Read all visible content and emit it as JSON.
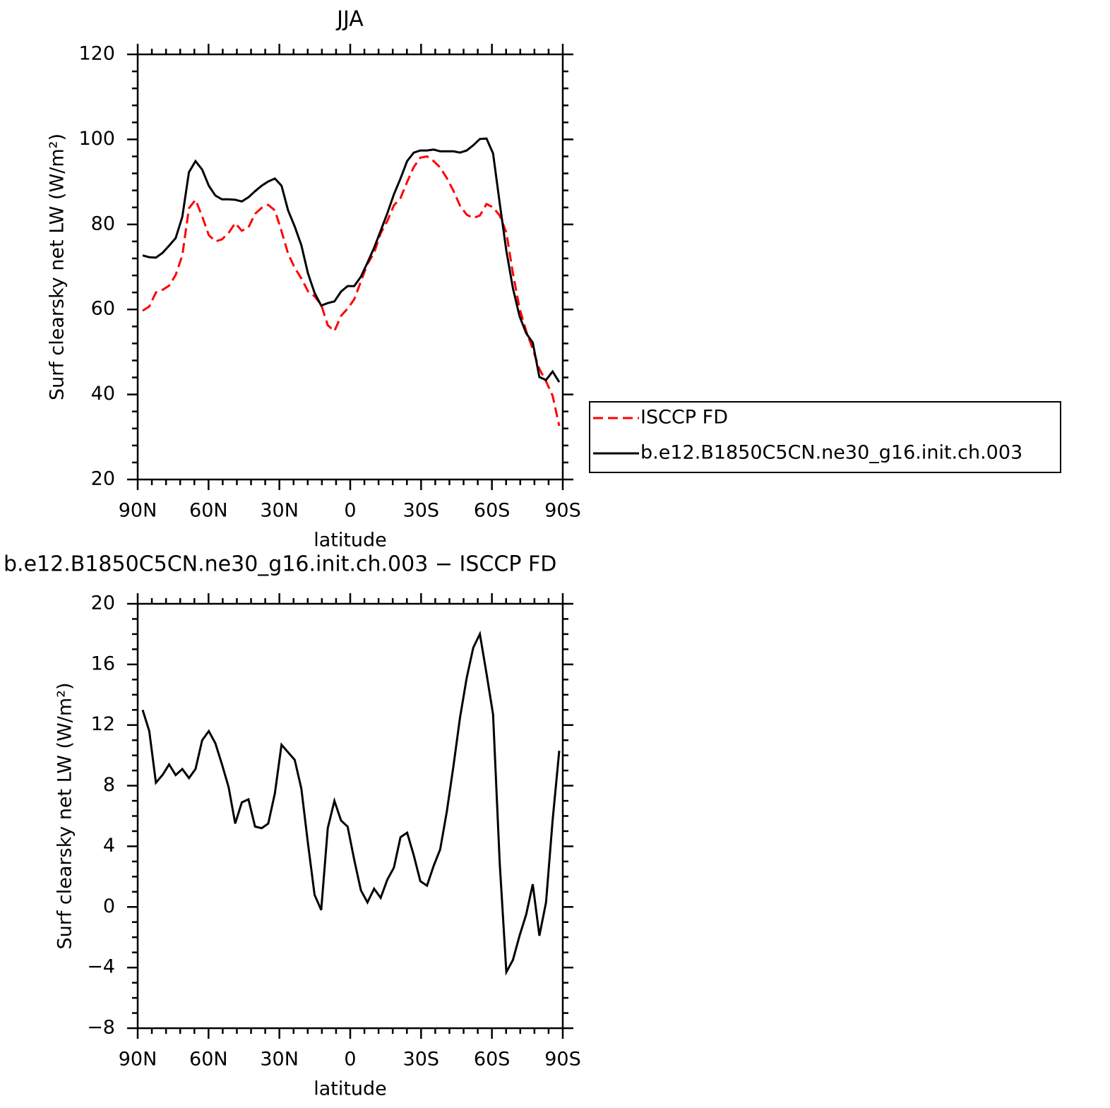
{
  "chart_data": [
    {
      "type": "line",
      "title": "JJA",
      "xlabel": "latitude",
      "ylabel": "Surf clearsky net LW (W/m²)",
      "xlim": [
        90,
        -90
      ],
      "xticks": [
        {
          "value": 90,
          "label": "90N"
        },
        {
          "value": 60,
          "label": "60N"
        },
        {
          "value": 30,
          "label": "30N"
        },
        0,
        {
          "value": -30,
          "label": "30S"
        },
        {
          "value": -60,
          "label": "60S"
        },
        {
          "value": -90,
          "label": "90S"
        }
      ],
      "ylim": [
        20,
        120
      ],
      "yticks": [
        20,
        40,
        60,
        80,
        100,
        120
      ],
      "legend": "outside right",
      "x": [
        87.9,
        85.1,
        82.3,
        79.5,
        76.7,
        73.9,
        71.1,
        68.3,
        65.5,
        62.7,
        59.9,
        57.1,
        54.3,
        51.5,
        48.7,
        45.9,
        43.1,
        40.3,
        37.5,
        34.7,
        31.9,
        29.1,
        26.3,
        23.5,
        20.7,
        17.9,
        15.1,
        12.3,
        9.5,
        6.7,
        3.9,
        1.1,
        -1.7,
        -4.5,
        -7.3,
        -10.1,
        -12.9,
        -15.7,
        -18.5,
        -21.3,
        -24.1,
        -26.9,
        -29.7,
        -32.5,
        -35.3,
        -38.1,
        -40.9,
        -43.7,
        -46.5,
        -49.3,
        -52.1,
        -54.9,
        -57.7,
        -60.5,
        -63.3,
        -66.1,
        -68.9,
        -71.7,
        -74.5,
        -77.3,
        -80.1,
        -82.9,
        -85.7,
        -88.5
      ],
      "series": [
        {
          "name": "ISCCP FD",
          "color": "#ff0000",
          "linestyle": "dashed",
          "values": [
            59.7,
            60.7,
            64.0,
            64.6,
            65.6,
            68.1,
            72.7,
            83.8,
            85.8,
            81.9,
            77.5,
            76.0,
            76.5,
            78.0,
            80.3,
            78.5,
            79.3,
            82.5,
            83.9,
            84.6,
            83.3,
            78.4,
            73.1,
            69.8,
            67.3,
            64.3,
            63.1,
            61.1,
            56.3,
            54.9,
            58.5,
            60.2,
            62.4,
            66.6,
            70.7,
            73.3,
            77.9,
            80.8,
            84.5,
            86.2,
            90.0,
            93.5,
            95.7,
            96.0,
            94.9,
            93.4,
            90.9,
            87.9,
            84.4,
            82.3,
            81.5,
            82.1,
            84.8,
            84.0,
            82.1,
            78.1,
            68.5,
            60.3,
            54.9,
            50.7,
            46.0,
            43.1,
            39.7,
            32.6
          ]
        },
        {
          "name": "b.e12.B1850C5CN.ne30_g16.init.ch.003",
          "color": "#000000",
          "linestyle": "solid",
          "values": [
            72.7,
            72.3,
            72.2,
            73.3,
            75.0,
            76.8,
            81.8,
            92.3,
            94.9,
            92.9,
            89.1,
            86.8,
            85.9,
            85.9,
            85.8,
            85.4,
            86.4,
            87.8,
            89.1,
            90.1,
            90.8,
            89.1,
            83.3,
            79.5,
            75.1,
            68.5,
            63.9,
            60.9,
            61.5,
            61.9,
            64.2,
            65.5,
            65.5,
            67.7,
            71.0,
            74.5,
            78.5,
            82.6,
            87.1,
            90.8,
            94.9,
            96.9,
            97.4,
            97.4,
            97.6,
            97.2,
            97.2,
            97.2,
            96.9,
            97.4,
            98.6,
            100.1,
            100.2,
            96.7,
            85.0,
            73.8,
            65.0,
            58.4,
            54.4,
            52.2,
            44.1,
            43.4,
            45.4,
            42.9
          ]
        }
      ]
    },
    {
      "type": "line",
      "title": "b.e12.B1850C5CN.ne30_g16.init.ch.003 − ISCCP FD",
      "xlabel": "latitude",
      "ylabel": "Surf clearsky net LW (W/m²)",
      "xlim": [
        90,
        -90
      ],
      "xticks": [
        {
          "value": 90,
          "label": "90N"
        },
        {
          "value": 60,
          "label": "60N"
        },
        {
          "value": 30,
          "label": "30N"
        },
        0,
        {
          "value": -30,
          "label": "30S"
        },
        {
          "value": -60,
          "label": "60S"
        },
        {
          "value": -90,
          "label": "90S"
        }
      ],
      "ylim": [
        -8,
        20
      ],
      "yticks": [
        {
          "value": -8,
          "label": "−8"
        },
        {
          "value": -4,
          "label": "−4"
        },
        0,
        4,
        8,
        12,
        16,
        20
      ],
      "x": [
        87.9,
        85.1,
        82.3,
        79.5,
        76.7,
        73.9,
        71.1,
        68.3,
        65.5,
        62.7,
        59.9,
        57.1,
        54.3,
        51.5,
        48.7,
        45.9,
        43.1,
        40.3,
        37.5,
        34.7,
        31.9,
        29.1,
        26.3,
        23.5,
        20.7,
        17.9,
        15.1,
        12.3,
        9.5,
        6.7,
        3.9,
        1.1,
        -1.7,
        -4.5,
        -7.3,
        -10.1,
        -12.9,
        -15.7,
        -18.5,
        -21.3,
        -24.1,
        -26.9,
        -29.7,
        -32.5,
        -35.3,
        -38.1,
        -40.9,
        -43.7,
        -46.5,
        -49.3,
        -52.1,
        -54.9,
        -57.7,
        -60.5,
        -63.3,
        -66.1,
        -68.9,
        -71.7,
        -74.5,
        -77.3,
        -80.1,
        -82.9,
        -85.7,
        -88.5
      ],
      "series": [
        {
          "color": "#000000",
          "linestyle": "solid",
          "values": [
            13.0,
            11.6,
            8.2,
            8.7,
            9.4,
            8.7,
            9.1,
            8.5,
            9.1,
            11.0,
            11.6,
            10.8,
            9.4,
            7.9,
            5.5,
            6.9,
            7.1,
            5.3,
            5.2,
            5.5,
            7.5,
            10.7,
            10.2,
            9.7,
            7.8,
            4.2,
            0.8,
            -0.2,
            5.2,
            7.0,
            5.7,
            5.3,
            3.1,
            1.1,
            0.3,
            1.2,
            0.6,
            1.8,
            2.6,
            4.6,
            4.9,
            3.4,
            1.7,
            1.4,
            2.7,
            3.8,
            6.3,
            9.3,
            12.5,
            15.1,
            17.1,
            18.0,
            15.4,
            12.7,
            2.9,
            -4.3,
            -3.5,
            -1.9,
            -0.5,
            1.5,
            -1.9,
            0.3,
            5.7,
            10.3
          ]
        }
      ]
    }
  ]
}
